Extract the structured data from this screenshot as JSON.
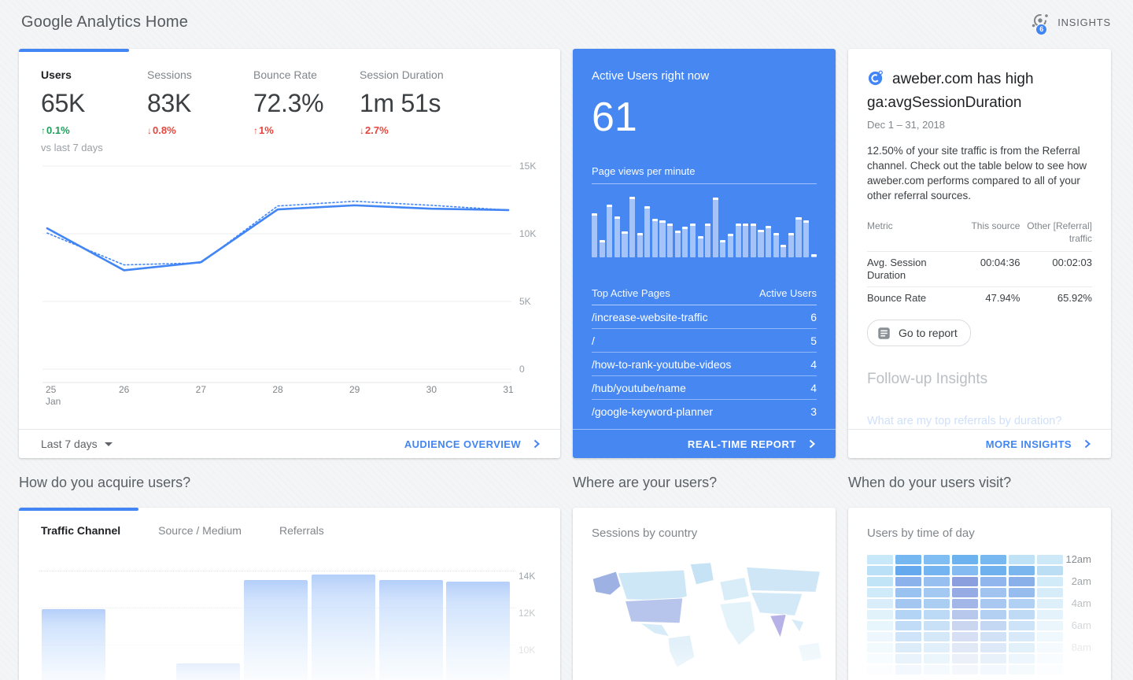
{
  "colors": {
    "accent_blue": "#4285f4",
    "positive": "#1e9e5a",
    "negative": "#e8453c",
    "grid_line": "#ebedef",
    "axis_tick": "#9aa0a6"
  },
  "header": {
    "title": "Google Analytics Home",
    "insights_label": "INSIGHTS",
    "insights_badge": "6"
  },
  "summary_card": {
    "metrics": [
      {
        "label": "Users",
        "value": "65K",
        "delta": "0.1%",
        "direction": "up",
        "trend": "positive",
        "active": true
      },
      {
        "label": "Sessions",
        "value": "83K",
        "delta": "0.8%",
        "direction": "down",
        "trend": "negative",
        "active": false
      },
      {
        "label": "Bounce Rate",
        "value": "72.3%",
        "delta": "1%",
        "direction": "up",
        "trend": "negative",
        "active": false
      },
      {
        "label": "Session Duration",
        "value": "1m 51s",
        "delta": "2.7%",
        "direction": "down",
        "trend": "negative",
        "active": false
      }
    ],
    "compare_note": "vs last 7 days",
    "footer": {
      "range_label": "Last 7 days",
      "link": "AUDIENCE OVERVIEW"
    },
    "chart_data": {
      "type": "line",
      "x": [
        "25",
        "26",
        "27",
        "28",
        "29",
        "30",
        "31"
      ],
      "x_sublabel": "Jan",
      "y_ticks": [
        {
          "value": 15000,
          "label": "15K"
        },
        {
          "value": 10000,
          "label": "10K"
        },
        {
          "value": 5000,
          "label": "5K"
        },
        {
          "value": 0,
          "label": "0"
        }
      ],
      "ylim": [
        0,
        15000
      ],
      "series": [
        {
          "name": "current",
          "style": "solid",
          "values": [
            10400,
            7300,
            7900,
            11800,
            12100,
            11850,
            11750
          ]
        },
        {
          "name": "previous",
          "style": "dotted",
          "values": [
            10050,
            7700,
            7850,
            12050,
            12400,
            12100,
            11750
          ]
        }
      ]
    }
  },
  "realtime_card": {
    "title": "Active Users right now",
    "active_users": "61",
    "pvpm_label": "Page views per minute",
    "chart_data": {
      "type": "bar",
      "title": "Page views per minute",
      "values_pct": [
        62,
        24,
        74,
        58,
        37,
        86,
        35,
        72,
        55,
        52,
        48,
        38,
        43,
        48,
        30,
        48,
        84,
        25,
        33,
        48,
        48,
        48,
        39,
        44,
        35,
        18,
        34,
        57,
        52,
        4
      ]
    },
    "table": {
      "headers": [
        "Top Active Pages",
        "Active Users"
      ],
      "rows": [
        {
          "page": "/increase-website-traffic",
          "users": "6"
        },
        {
          "page": "/",
          "users": "5"
        },
        {
          "page": "/how-to-rank-youtube-videos",
          "users": "4"
        },
        {
          "page": "/hub/youtube/name",
          "users": "4"
        },
        {
          "page": "/google-keyword-planner",
          "users": "3"
        }
      ]
    },
    "footer_link": "REAL-TIME REPORT"
  },
  "insight_card": {
    "title": "aweber.com has high ga:avgSessionDuration",
    "date_range": "Dec 1 – 31, 2018",
    "body": "12.50% of your site traffic is from the Referral channel. Check out the table below to see how aweber.com performs compared to all of your other referral sources.",
    "table": {
      "headers": [
        "Metric",
        "This source",
        "Other [Referral] traffic"
      ],
      "rows": [
        {
          "metric": "Avg. Session Duration",
          "this_source": "00:04:36",
          "other": "00:02:03"
        },
        {
          "metric": "Bounce Rate",
          "this_source": "47.94%",
          "other": "65.92%"
        }
      ]
    },
    "button": "Go to report",
    "followup_title": "Follow-up Insights",
    "followup_question": "What are my top referrals by duration?",
    "footer_link": "MORE INSIGHTS"
  },
  "acquisition_card": {
    "section_title": "How do you acquire users?",
    "tabs": [
      "Traffic Channel",
      "Source / Medium",
      "Referrals"
    ],
    "active_tab": 0,
    "chart_data": {
      "type": "bar",
      "title": "Traffic Channel",
      "y_ticks": [
        {
          "value": 14000,
          "label": "14K",
          "opacity": 0.95
        },
        {
          "value": 12000,
          "label": "12K",
          "opacity": 0.6
        },
        {
          "value": 10000,
          "label": "10K",
          "opacity": 0.3
        }
      ],
      "bars": [
        {
          "slot": 0,
          "value": 11900,
          "faint": false
        },
        {
          "slot": 2,
          "value": 9000,
          "faint": true
        },
        {
          "slot": 3,
          "value": 13500,
          "faint": false
        },
        {
          "slot": 4,
          "value": 13800,
          "faint": false
        },
        {
          "slot": 5,
          "value": 13500,
          "faint": false
        },
        {
          "slot": 6,
          "value": 13400,
          "faint": false
        }
      ]
    }
  },
  "geo_card": {
    "section_title": "Where are your users?",
    "subtitle": "Sessions by country",
    "regions": {
      "base": "#d7ecf8",
      "canada": "#cde7f6",
      "greenland": "#c6e3f5",
      "russia": "#cfe6f6",
      "europe": "#d9edf8",
      "africa": "#e4f2fa",
      "south_america": "#e1f0f9",
      "asia": "#d4e9f7",
      "australia": "#eef7fc",
      "usa": "#b7c4ec",
      "alaska": "#9db1e3",
      "india": "#b6b1e6"
    }
  },
  "time_card": {
    "section_title": "When do your users visit?",
    "subtitle": "Users by time of day",
    "chart_data": {
      "type": "heatmap",
      "cols": 7,
      "rows": 11,
      "row_labels": [
        {
          "row": 0,
          "label": "12am",
          "opacity": 0.95
        },
        {
          "row": 2,
          "label": "2am",
          "opacity": 0.75
        },
        {
          "row": 4,
          "label": "4am",
          "opacity": 0.52
        },
        {
          "row": 6,
          "label": "6am",
          "opacity": 0.33
        },
        {
          "row": 8,
          "label": "8am",
          "opacity": 0.18
        }
      ],
      "colors": [
        [
          "#c7e8f8",
          "#74b7f1",
          "#7fbdf2",
          "#6cb2ef",
          "#77b8f0",
          "#bfe2f7",
          "#cde9f8"
        ],
        [
          "#b9e0f6",
          "#64a9ed",
          "#74b4f0",
          "#84bcf1",
          "#6fb0ee",
          "#7cb6ef",
          "#bcdef5"
        ],
        [
          "#c2e4f7",
          "#8cb2ec",
          "#97c0f0",
          "#8b9fdf",
          "#90b6ed",
          "#8ab0ea",
          "#d2ebf9"
        ],
        [
          "#cfeaf9",
          "#9ac2f1",
          "#a3c9f2",
          "#96abe4",
          "#a0c3f0",
          "#97bdef",
          "#d6edf9"
        ],
        [
          "#d9eefa",
          "#a3c7f1",
          "#aacdf2",
          "#a2b6e8",
          "#a8c8f1",
          "#b0d1f3",
          "#ddf0fa"
        ],
        [
          "#e1f2fb",
          "#b3d4f4",
          "#bcd9f5",
          "#b7c8ec",
          "#b3cff2",
          "#bfdaf5",
          "#e4f3fb"
        ],
        [
          "#e7f5fc",
          "#c1dcf6",
          "#c9e1f7",
          "#cad6ef",
          "#c4d8f3",
          "#cde3f7",
          "#eaf5fc"
        ],
        [
          "#edf7fd",
          "#cfe4f8",
          "#d5e8f8",
          "#d6dff3",
          "#d1e1f6",
          "#d8eaf9",
          "#eff8fd"
        ],
        [
          "#f2fafd",
          "#dcecf9",
          "#e0effa",
          "#e1e8f6",
          "#dde9f8",
          "#e2f0fa",
          "#f4fafd"
        ],
        [
          "#f7fcfe",
          "#e8f3fb",
          "#ebf5fc",
          "#ebf0f9",
          "#e8f1fa",
          "#edf6fc",
          "#f8fcfe"
        ],
        [
          "#fbfdff",
          "#f2f8fd",
          "#f4fafd",
          "#f4f7fc",
          "#f2f8fd",
          "#f5fbfd",
          "#fcfdff"
        ]
      ]
    }
  }
}
